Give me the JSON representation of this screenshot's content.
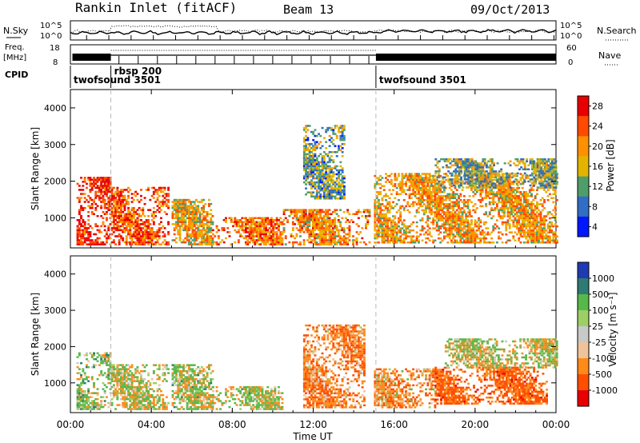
{
  "header": {
    "station": "Rankin Inlet (fitACF)",
    "beam": "Beam 13",
    "date": "09/Oct/2013"
  },
  "top_panels": {
    "nsky_label": "N.Sky",
    "nsky_ticks": [
      "10^5",
      "10^0"
    ],
    "nsearch_label": "N.Search",
    "nsearch_ticks": [
      "10^5",
      "10^0"
    ],
    "freq_label_1": "Freq.",
    "freq_label_2": "[MHz]",
    "freq_ticks": [
      "18",
      "8"
    ],
    "nave_label": "Nave",
    "nave_ticks": [
      "60",
      "0"
    ],
    "cpid_label": "CPID",
    "modes": [
      {
        "name": "twofsound 3501",
        "start_hour": 0,
        "end_hour": 2.0
      },
      {
        "name": "rbsp 200",
        "start_hour": 2.0,
        "end_hour": 15.1
      },
      {
        "name": "twofsound 3501",
        "start_hour": 15.1,
        "end_hour": 24
      }
    ]
  },
  "colorbars": {
    "power": {
      "label": "Power [dB]",
      "ticks": [
        "28",
        "24",
        "20",
        "16",
        "12",
        "8",
        "4"
      ],
      "colors": [
        "#e80000",
        "#ff4a00",
        "#ff9000",
        "#e2b400",
        "#4f9e6a",
        "#2f6ec4",
        "#0018ff"
      ]
    },
    "velocity": {
      "label": "Velocity [m s⁻¹]",
      "ticks": [
        "1000",
        "500",
        "100",
        "25",
        "-25",
        "-100",
        "-500",
        "-1000"
      ],
      "colors": [
        "#1f3bb3",
        "#2f7a72",
        "#57b84a",
        "#9cd064",
        "#c9c9c9",
        "#f0c39a",
        "#ff8a1a",
        "#ff4e00",
        "#e80000"
      ]
    }
  },
  "chart_data": [
    {
      "type": "heatmap",
      "panel": "power",
      "ylabel": "Slant Range [km]",
      "ylim": [
        180,
        4500
      ],
      "yticks": [
        1000,
        2000,
        3000,
        4000
      ],
      "xlim": [
        0,
        24
      ],
      "xticks": [
        0,
        4,
        8,
        12,
        16,
        20,
        24
      ],
      "xtick_labels": [
        "00:00",
        "04:00",
        "08:00",
        "12:00",
        "16:00",
        "20:00",
        "00:00"
      ],
      "mode_change_hours": [
        2.0,
        15.1
      ],
      "regions": [
        {
          "t": [
            0.3,
            2.0
          ],
          "r": [
            250,
            2100
          ],
          "value": 27
        },
        {
          "t": [
            2.0,
            4.8
          ],
          "r": [
            250,
            1800
          ],
          "value": 24
        },
        {
          "t": [
            5.0,
            7.0
          ],
          "r": [
            250,
            1500
          ],
          "value": 18
        },
        {
          "t": [
            7.0,
            10.5
          ],
          "r": [
            250,
            1000
          ],
          "value": 22
        },
        {
          "t": [
            10.5,
            14.8
          ],
          "r": [
            250,
            1200
          ],
          "value": 20
        },
        {
          "t": [
            15.0,
            24.0
          ],
          "r": [
            300,
            2200
          ],
          "value": 19
        },
        {
          "t": [
            18.0,
            24.0
          ],
          "r": [
            1800,
            2600
          ],
          "value": 13
        },
        {
          "t": [
            11.5,
            13.5
          ],
          "r": [
            1500,
            3500
          ],
          "value": 12
        }
      ]
    },
    {
      "type": "heatmap",
      "panel": "velocity",
      "ylabel": "Slant Range [km]",
      "xlabel": "Time UT",
      "ylim": [
        180,
        4500
      ],
      "yticks": [
        1000,
        2000,
        3000,
        4000
      ],
      "xlim": [
        0,
        24
      ],
      "xticks": [
        0,
        4,
        8,
        12,
        16,
        20,
        24
      ],
      "xtick_labels": [
        "00:00",
        "04:00",
        "08:00",
        "12:00",
        "16:00",
        "20:00",
        "00:00"
      ],
      "mode_change_hours": [
        2.0,
        15.1
      ],
      "regions": [
        {
          "t": [
            0.3,
            2.0
          ],
          "r": [
            250,
            1800
          ],
          "value": 150
        },
        {
          "t": [
            2.0,
            4.8
          ],
          "r": [
            250,
            1500
          ],
          "value": 0
        },
        {
          "t": [
            5.0,
            7.0
          ],
          "r": [
            250,
            1500
          ],
          "value": 80
        },
        {
          "t": [
            7.0,
            10.5
          ],
          "r": [
            250,
            900
          ],
          "value": 60
        },
        {
          "t": [
            11.5,
            14.5
          ],
          "r": [
            300,
            2600
          ],
          "value": -400
        },
        {
          "t": [
            15.0,
            18.0
          ],
          "r": [
            300,
            1400
          ],
          "value": -300
        },
        {
          "t": [
            18.0,
            23.5
          ],
          "r": [
            400,
            1400
          ],
          "value": -600
        },
        {
          "t": [
            18.5,
            24.0
          ],
          "r": [
            1400,
            2200
          ],
          "value": 0
        }
      ]
    }
  ]
}
